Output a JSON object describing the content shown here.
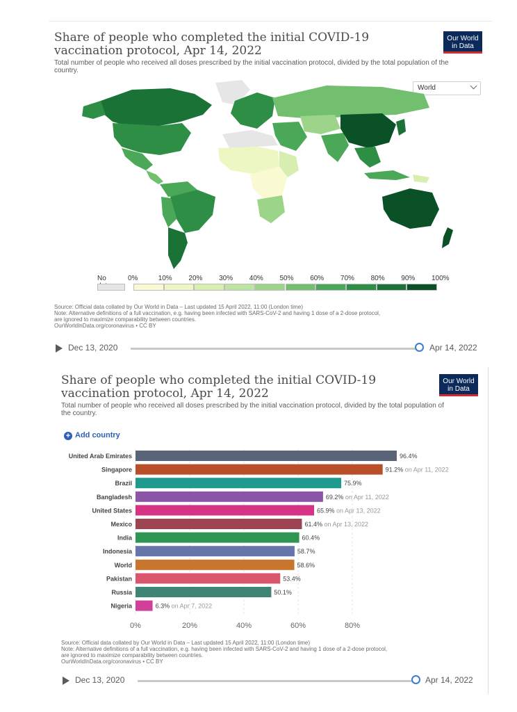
{
  "map_panel": {
    "title": "Share of people who completed the initial COVID-19 vaccination protocol, Apr 14, 2022",
    "subtitle": "Total number of people who received all doses prescribed by the initial vaccination protocol, divided by the total population of the country.",
    "logo": [
      "Our World",
      "in Data"
    ],
    "region_select": "World",
    "legend": {
      "nodata_label": "No data",
      "ticks": [
        "0%",
        "10%",
        "20%",
        "30%",
        "40%",
        "50%",
        "60%",
        "70%",
        "80%",
        "90%",
        "100%"
      ],
      "colors": [
        "#fafad2",
        "#edf7c3",
        "#d8eeb0",
        "#bde5a0",
        "#9cd48a",
        "#72c06f",
        "#4aa858",
        "#2e8e45",
        "#1b7237",
        "#0a5128"
      ],
      "nodata_color": "#e6e6e6"
    },
    "source_lines": [
      "Source: Official data collated by Our World in Data – Last updated 15 April 2022, 11:00 (London time)",
      "Note: Alternative definitions of a full vaccination, e.g. having been infected with SARS-CoV-2 and having 1 dose of a 2-dose protocol,",
      "are ignored to maximize comparability between countries.",
      "OurWorldInData.org/coronavirus • CC BY"
    ],
    "timeline": {
      "start": "Dec 13, 2020",
      "end": "Apr 14, 2022",
      "position": 1.0
    }
  },
  "bar_panel": {
    "title": "Share of people who completed the initial COVID-19 vaccination protocol, Apr 14, 2022",
    "subtitle": "Total number of people who received all doses prescribed by the initial vaccination protocol, divided by the total population of the country.",
    "logo": [
      "Our World",
      "in Data"
    ],
    "add_country": "Add country",
    "source_lines": [
      "Source: Official data collated by Our World in Data – Last updated 15 April 2022, 11:00 (London time)",
      "Note: Alternative definitions of a full vaccination, e.g. having been infected with SARS-CoV-2 and having 1 dose of a 2-dose protocol,",
      "are ignored to maximize comparability between countries.",
      "OurWorldInData.org/coronavirus • CC BY"
    ],
    "timeline": {
      "start": "Dec 13, 2020",
      "end": "Apr 14, 2022",
      "position": 1.0
    }
  },
  "chart_data": [
    {
      "type": "heatmap",
      "title": "Share of people who completed the initial COVID-19 vaccination protocol, Apr 14, 2022",
      "legend_bins": [
        "0%",
        "10%",
        "20%",
        "30%",
        "40%",
        "50%",
        "60%",
        "70%",
        "80%",
        "90%",
        "100%"
      ],
      "legend_nodata": "No data"
    },
    {
      "type": "bar",
      "orientation": "horizontal",
      "title": "Share of people who completed the initial COVID-19 vaccination protocol, Apr 14, 2022",
      "xlim": [
        0,
        100
      ],
      "xticks": [
        "0%",
        "20%",
        "40%",
        "60%",
        "80%"
      ],
      "bars": [
        {
          "label": "United Arab Emirates",
          "value": 96.4,
          "value_label": "96.4%",
          "note": "",
          "color": "#5a6479"
        },
        {
          "label": "Singapore",
          "value": 91.2,
          "value_label": "91.2%",
          "note": "on Apr 11, 2022",
          "color": "#b94f28"
        },
        {
          "label": "Brazil",
          "value": 75.9,
          "value_label": "75.9%",
          "note": "",
          "color": "#1f9a8e"
        },
        {
          "label": "Bangladesh",
          "value": 69.2,
          "value_label": "69.2%",
          "note": "on Apr 11, 2022",
          "color": "#8a55a6"
        },
        {
          "label": "United States",
          "value": 65.9,
          "value_label": "65.9%",
          "note": "on Apr 13, 2022",
          "color": "#d63384"
        },
        {
          "label": "Mexico",
          "value": 61.4,
          "value_label": "61.4%",
          "note": "on Apr 13, 2022",
          "color": "#9c4452"
        },
        {
          "label": "India",
          "value": 60.4,
          "value_label": "60.4%",
          "note": "",
          "color": "#2e9552"
        },
        {
          "label": "Indonesia",
          "value": 58.7,
          "value_label": "58.7%",
          "note": "",
          "color": "#6676aa"
        },
        {
          "label": "World",
          "value": 58.6,
          "value_label": "58.6%",
          "note": "",
          "color": "#c8762d"
        },
        {
          "label": "Pakistan",
          "value": 53.4,
          "value_label": "53.4%",
          "note": "",
          "color": "#d9566d"
        },
        {
          "label": "Russia",
          "value": 50.1,
          "value_label": "50.1%",
          "note": "",
          "color": "#3e8576"
        },
        {
          "label": "Nigeria",
          "value": 6.3,
          "value_label": "6.3%",
          "note": "on Apr 7, 2022",
          "color": "#d0409a"
        }
      ]
    }
  ]
}
